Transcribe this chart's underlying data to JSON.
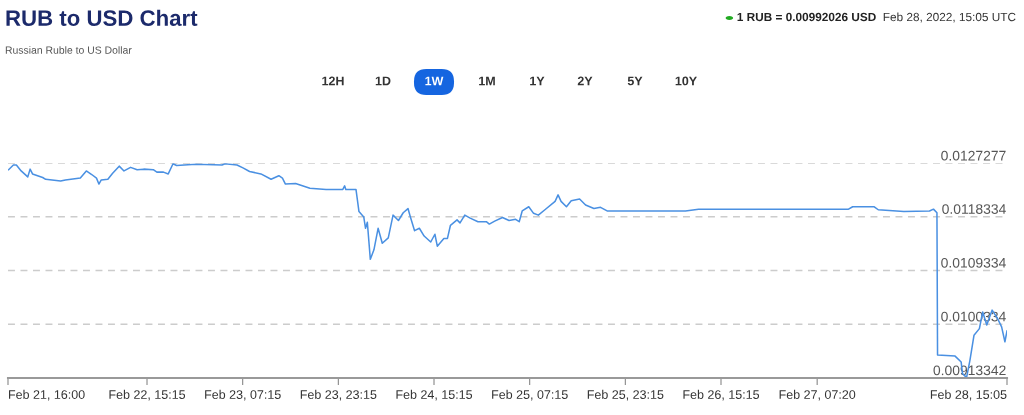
{
  "chart_data": {
    "type": "line",
    "title": "RUB to USD Chart",
    "subtitle": "Russian Ruble to US Dollar",
    "annotations": [
      "1 RUB = 0.00992026 USD",
      "Feb 28, 2022, 15:05 UTC",
      "12H",
      "1D",
      "1W",
      "1M",
      "1Y",
      "2Y",
      "5Y",
      "10Y"
    ],
    "x": [
      "2022-02-21T16:06",
      "2022-02-21T16:54",
      "2022-02-21T17:24",
      "2022-02-21T18:12",
      "2022-02-21T19:18",
      "2022-02-21T19:42",
      "2022-02-21T20:06",
      "2022-02-21T21:48",
      "2022-02-21T22:18",
      "2022-02-22T00:48",
      "2022-02-22T01:36",
      "2022-02-22T04:06",
      "2022-02-22T05:06",
      "2022-02-22T06:00",
      "2022-02-22T06:48",
      "2022-02-22T07:12",
      "2022-02-22T07:36",
      "2022-02-22T08:42",
      "2022-02-22T09:30",
      "2022-02-22T10:36",
      "2022-02-22T11:24",
      "2022-02-22T12:30",
      "2022-02-22T13:36",
      "2022-02-22T14:42",
      "2022-02-22T16:18",
      "2022-02-22T16:54",
      "2022-02-22T18:00",
      "2022-02-22T18:48",
      "2022-02-22T19:36",
      "2022-02-22T20:12",
      "2022-02-22T23:24",
      "2022-02-23T03:48",
      "2022-02-23T04:18",
      "2022-02-23T06:18",
      "2022-02-23T07:18",
      "2022-02-23T08:24",
      "2022-02-23T10:18",
      "2022-02-23T12:00",
      "2022-02-23T13:18",
      "2022-02-23T13:54",
      "2022-02-23T14:24",
      "2022-02-23T16:06",
      "2022-02-23T18:30",
      "2022-02-23T21:12",
      "2022-02-24T00:00",
      "2022-02-24T00:18",
      "2022-02-24T00:30",
      "2022-02-24T02:12",
      "2022-02-24T02:42",
      "2022-02-24T03:30",
      "2022-02-24T03:48",
      "2022-02-24T04:06",
      "2022-02-24T04:36",
      "2022-02-24T05:12",
      "2022-02-24T05:54",
      "2022-02-24T06:36",
      "2022-02-24T07:36",
      "2022-02-24T08:24",
      "2022-02-24T09:18",
      "2022-02-24T10:06",
      "2022-02-24T10:54",
      "2022-02-24T11:18",
      "2022-02-24T12:00",
      "2022-02-24T12:48",
      "2022-02-24T13:36",
      "2022-02-24T14:42",
      "2022-02-24T15:24",
      "2022-02-24T15:48",
      "2022-02-24T16:54",
      "2022-02-24T17:30",
      "2022-02-24T18:00",
      "2022-02-24T19:06",
      "2022-02-24T19:36",
      "2022-02-24T20:24",
      "2022-02-24T21:18",
      "2022-02-24T22:36",
      "2022-02-25T00:00",
      "2022-02-25T00:30",
      "2022-02-25T01:24",
      "2022-02-25T02:42",
      "2022-02-25T03:48",
      "2022-02-25T04:54",
      "2022-02-25T05:30",
      "2022-02-25T06:00",
      "2022-02-25T07:06",
      "2022-02-25T07:54",
      "2022-02-25T08:42",
      "2022-02-25T09:48",
      "2022-02-25T11:30",
      "2022-02-25T12:00",
      "2022-02-25T12:30",
      "2022-02-25T13:24",
      "2022-02-25T14:12",
      "2022-02-25T15:36",
      "2022-02-25T16:36",
      "2022-02-25T18:00",
      "2022-02-25T19:06",
      "2022-02-25T20:12",
      "2022-02-26T03:48",
      "2022-02-26T09:18",
      "2022-02-26T11:30",
      "2022-02-27T12:35",
      "2022-02-27T13:16",
      "2022-02-27T16:53",
      "2022-02-27T17:33",
      "2022-02-27T21:50",
      "2022-02-28T02:07",
      "2022-02-28T02:47",
      "2022-02-28T03:22",
      "2022-02-28T03:28",
      "2022-02-28T06:24",
      "2022-02-28T07:25",
      "2022-02-28T07:38",
      "2022-02-28T08:19",
      "2022-02-28T08:53",
      "2022-02-28T09:34",
      "2022-02-28T10:28",
      "2022-02-28T11:01",
      "2022-02-28T11:42",
      "2022-02-28T12:36",
      "2022-02-28T13:30",
      "2022-02-28T14:11",
      "2022-02-28T14:44",
      "2022-02-28T15:05"
    ],
    "series": [
      {
        "color": "#4a90e2",
        "values": [
          0.01262,
          0.0127,
          0.0127,
          0.0126,
          0.0125,
          0.01263,
          0.01255,
          0.01249,
          0.01246,
          0.01243,
          0.01245,
          0.01248,
          0.0126,
          0.01254,
          0.01248,
          0.01238,
          0.01245,
          0.01246,
          0.01256,
          0.01268,
          0.0126,
          0.01266,
          0.01262,
          0.01263,
          0.01262,
          0.01258,
          0.01258,
          0.01255,
          0.01272,
          0.01269,
          0.01271,
          0.0127,
          0.01272,
          0.0127,
          0.01265,
          0.01259,
          0.01255,
          0.01246,
          0.01252,
          0.01248,
          0.01238,
          0.01239,
          0.01231,
          0.01229,
          0.01229,
          0.01235,
          0.01229,
          0.01229,
          0.01192,
          0.01183,
          0.01164,
          0.01174,
          0.01112,
          0.01128,
          0.01164,
          0.01139,
          0.01148,
          0.01186,
          0.01177,
          0.0119,
          0.01197,
          0.01183,
          0.0116,
          0.01164,
          0.01151,
          0.01141,
          0.01154,
          0.01134,
          0.01147,
          0.01147,
          0.01169,
          0.01178,
          0.01173,
          0.01186,
          0.01181,
          0.01175,
          0.01175,
          0.01171,
          0.01176,
          0.01182,
          0.01177,
          0.01179,
          0.01175,
          0.01193,
          0.012,
          0.01189,
          0.01186,
          0.01195,
          0.01209,
          0.0122,
          0.01209,
          0.012,
          0.0121,
          0.01213,
          0.01203,
          0.01197,
          0.01199,
          0.01193,
          0.01193,
          0.01193,
          0.01196,
          0.01196,
          0.012,
          0.012,
          0.01195,
          0.01192,
          0.01193,
          0.01196,
          0.0119,
          0.00952,
          0.0095,
          0.0094,
          0.00921,
          0.00914,
          0.00943,
          0.00985,
          0.00996,
          0.01024,
          0.01002,
          0.01027,
          0.01013,
          0.00999,
          0.00974,
          0.00992
        ]
      }
    ],
    "xlim": [
      "2022-02-21T16:00",
      "2022-02-28T15:05"
    ],
    "xticks": [
      {
        "value": "2022-02-21T16:00",
        "label": "Feb 21, 16:00"
      },
      {
        "value": "2022-02-22T15:15",
        "label": "Feb 22, 15:15"
      },
      {
        "value": "2022-02-23T07:15",
        "label": "Feb 23, 07:15"
      },
      {
        "value": "2022-02-23T23:15",
        "label": "Feb 23, 23:15"
      },
      {
        "value": "2022-02-24T15:15",
        "label": "Feb 24, 15:15"
      },
      {
        "value": "2022-02-25T07:15",
        "label": "Feb 25, 07:15"
      },
      {
        "value": "2022-02-25T23:15",
        "label": "Feb 25, 23:15"
      },
      {
        "value": "2022-02-26T15:15",
        "label": "Feb 26, 15:15"
      },
      {
        "value": "2022-02-27T07:20",
        "label": "Feb 27, 07:20"
      },
      {
        "value": "2022-02-28T15:05",
        "label": "Feb 28, 15:05"
      }
    ],
    "ylim": [
      0.00913342,
      0.0127277
    ],
    "yticks": [
      {
        "value": 0.00913342,
        "label": "0.00913342"
      },
      {
        "value": 0.0100334,
        "label": "0.0100334"
      },
      {
        "value": 0.0109334,
        "label": "0.0109334"
      },
      {
        "value": 0.0118334,
        "label": "0.0118334"
      },
      {
        "value": 0.0127277,
        "label": "0.0127277"
      }
    ],
    "grid": "y",
    "line_style": "solid"
  }
}
